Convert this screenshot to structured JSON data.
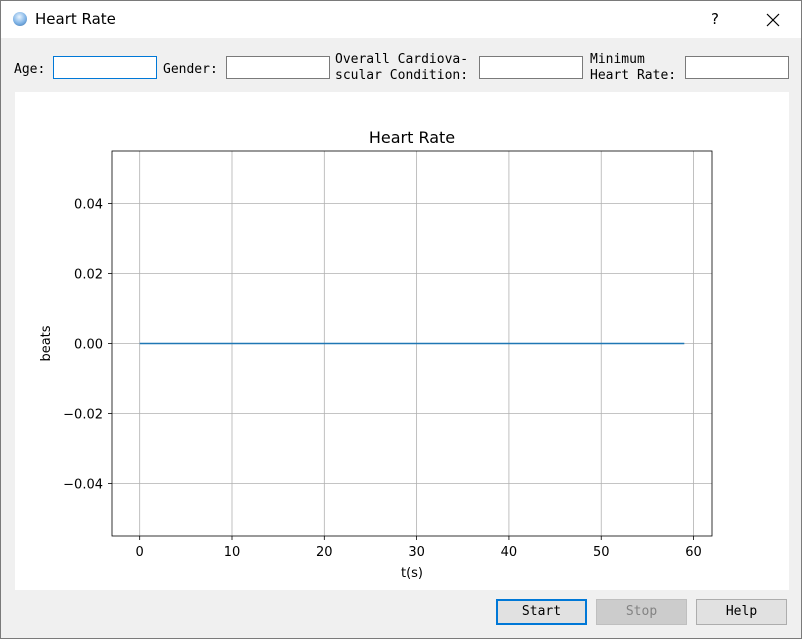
{
  "window": {
    "title": "Heart Rate",
    "help_button": "?",
    "close_icon": "close-icon",
    "app_icon": "app-icon"
  },
  "form": {
    "age_label": "Age:",
    "gender_label": "Gender:",
    "cardio_label_line1": "Overall Cardiova-",
    "cardio_label_line2": "scular Condition:",
    "minhr_label_line1": "Minimum",
    "minhr_label_line2": "Heart Rate:",
    "age_value": "",
    "gender_value": "",
    "cardio_value": "",
    "minhr_value": ""
  },
  "buttons": {
    "start": "Start",
    "stop": "Stop",
    "help": "Help"
  },
  "chart_data": {
    "type": "line",
    "title": "Heart Rate",
    "xlabel": "t(s)",
    "ylabel": "beats",
    "xlim": [
      -3,
      62
    ],
    "ylim": [
      -0.055,
      0.055
    ],
    "xticks": [
      0,
      10,
      20,
      30,
      40,
      50,
      60
    ],
    "yticks": [
      0.04,
      0.02,
      0.0,
      -0.02,
      -0.04
    ],
    "xtick_labels": [
      "0",
      "10",
      "20",
      "30",
      "40",
      "50",
      "60"
    ],
    "ytick_labels": [
      "0.04",
      "0.02",
      "0.00",
      "−0.02",
      "−0.04"
    ],
    "grid": true,
    "color": "#1f77b4",
    "series": [
      {
        "x": [
          0,
          59
        ],
        "y": [
          0,
          0
        ]
      }
    ]
  }
}
